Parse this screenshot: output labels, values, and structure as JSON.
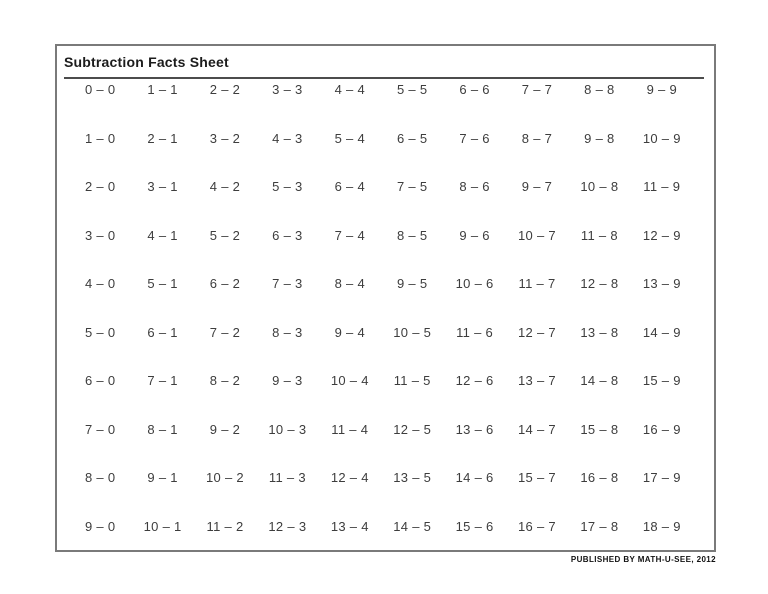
{
  "page": {
    "title": "Subtraction Facts Sheet",
    "footer": "PUBLISHED BY MATH-U-SEE, 2012"
  },
  "grid": {
    "columns": 10,
    "rows": [
      [
        "0 – 0",
        "1 – 1",
        "2 – 2",
        "3 – 3",
        "4 – 4",
        "5 – 5",
        "6 – 6",
        "7 – 7",
        "8 – 8",
        "9 – 9"
      ],
      [
        "1 – 0",
        "2 – 1",
        "3 – 2",
        "4 – 3",
        "5 – 4",
        "6 – 5",
        "7 – 6",
        "8 – 7",
        "9 – 8",
        "10 – 9"
      ],
      [
        "2 – 0",
        "3 – 1",
        "4 – 2",
        "5 – 3",
        "6 – 4",
        "7 – 5",
        "8 – 6",
        "9 – 7",
        "10 – 8",
        "11 – 9"
      ],
      [
        "3 – 0",
        "4 – 1",
        "5 – 2",
        "6 – 3",
        "7 – 4",
        "8 – 5",
        "9 – 6",
        "10 – 7",
        "11 – 8",
        "12 – 9"
      ],
      [
        "4 – 0",
        "5 – 1",
        "6 – 2",
        "7 – 3",
        "8 – 4",
        "9 – 5",
        "10 – 6",
        "11 – 7",
        "12 – 8",
        "13 – 9"
      ],
      [
        "5 – 0",
        "6 – 1",
        "7 – 2",
        "8 – 3",
        "9 – 4",
        "10 – 5",
        "11 – 6",
        "12 – 7",
        "13 – 8",
        "14 – 9"
      ],
      [
        "6 – 0",
        "7 – 1",
        "8 – 2",
        "9 – 3",
        "10 – 4",
        "11 – 5",
        "12 – 6",
        "13 – 7",
        "14 – 8",
        "15 – 9"
      ],
      [
        "7 – 0",
        "8 – 1",
        "9 – 2",
        "10 – 3",
        "11 – 4",
        "12 – 5",
        "13 – 6",
        "14 – 7",
        "15 – 8",
        "16 – 9"
      ],
      [
        "8 – 0",
        "9 – 1",
        "10 – 2",
        "11 – 3",
        "12 – 4",
        "13 – 5",
        "14 – 6",
        "15 – 7",
        "16 – 8",
        "17 – 9"
      ],
      [
        "9 – 0",
        "10 – 1",
        "11 – 2",
        "12 – 3",
        "13 – 4",
        "14 – 5",
        "15 – 6",
        "16 – 7",
        "17 – 8",
        "18 – 9"
      ]
    ]
  },
  "colors": {
    "border": "#7a7a7a",
    "underline": "#4c4c4c",
    "title_text": "#1c1c1c",
    "cell_text": "#3d3d3d",
    "background": "#ffffff"
  }
}
